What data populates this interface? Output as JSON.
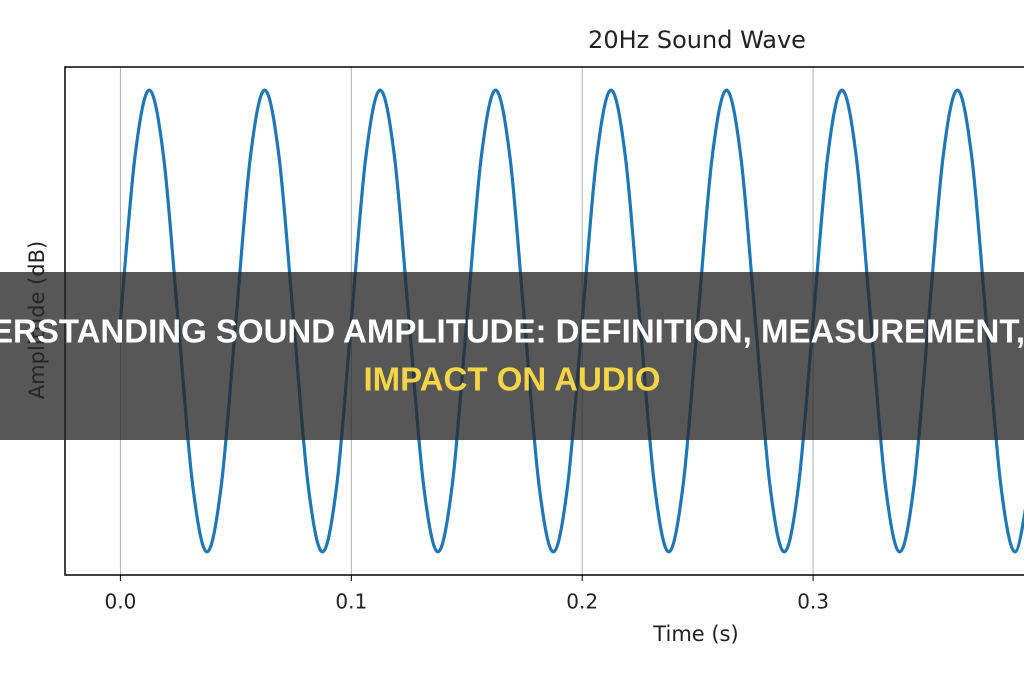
{
  "chart_data": {
    "type": "line",
    "title": "20Hz Sound Wave",
    "x_label": "Time (s)",
    "y_label": "Amplitude (dB)",
    "x": [
      0,
      0.00625,
      0.0125,
      0.01875,
      0.025,
      0.03125,
      0.0375,
      0.04375,
      0.05,
      0.05625,
      0.0625,
      0.06875,
      0.075,
      0.08125,
      0.0875,
      0.09375,
      0.1,
      0.10625,
      0.1125,
      0.11875,
      0.125,
      0.13125,
      0.1375,
      0.14375,
      0.15,
      0.15625,
      0.1625,
      0.16875,
      0.175,
      0.18125,
      0.1875,
      0.19375,
      0.2,
      0.20625,
      0.2125,
      0.21875,
      0.225,
      0.23125,
      0.2375,
      0.24375,
      0.25,
      0.25625,
      0.2625,
      0.26875,
      0.275,
      0.28125,
      0.2875,
      0.29375,
      0.3,
      0.30625,
      0.3125,
      0.31875,
      0.325,
      0.33125,
      0.3375,
      0.34375,
      0.35,
      0.35625,
      0.3625,
      0.36875,
      0.375,
      0.38125,
      0.3875,
      0.39375
    ],
    "series": [
      {
        "color": "#1f77b4",
        "values": [
          0,
          0.707,
          1,
          0.707,
          0,
          -0.707,
          -1,
          -0.707,
          0,
          0.707,
          1,
          0.707,
          0,
          -0.707,
          -1,
          -0.707,
          0,
          0.707,
          1,
          0.707,
          0,
          -0.707,
          -1,
          -0.707,
          0,
          0.707,
          1,
          0.707,
          0,
          -0.707,
          -1,
          -0.707,
          0,
          0.707,
          1,
          0.707,
          0,
          -0.707,
          -1,
          -0.707,
          0,
          0.707,
          1,
          0.707,
          0,
          -0.707,
          -1,
          -0.707,
          0,
          0.707,
          1,
          0.707,
          0,
          -0.707,
          -1,
          -0.707,
          0,
          0.707,
          1,
          0.707,
          0,
          -0.707,
          -1,
          -0.707
        ]
      }
    ],
    "xlim": [
      -0.024,
      0.4
    ],
    "ylim": [
      -1.1,
      1.1
    ],
    "xticks": [
      {
        "value": 0,
        "label": "0.0"
      },
      0.1,
      0.2,
      0.3
    ],
    "grid": true
  },
  "overlay": {
    "line1": "UNDERSTANDING SOUND AMPLITUDE: DEFINITION, MEASUREMENT, AND",
    "line2": "IMPACT ON AUDIO"
  }
}
